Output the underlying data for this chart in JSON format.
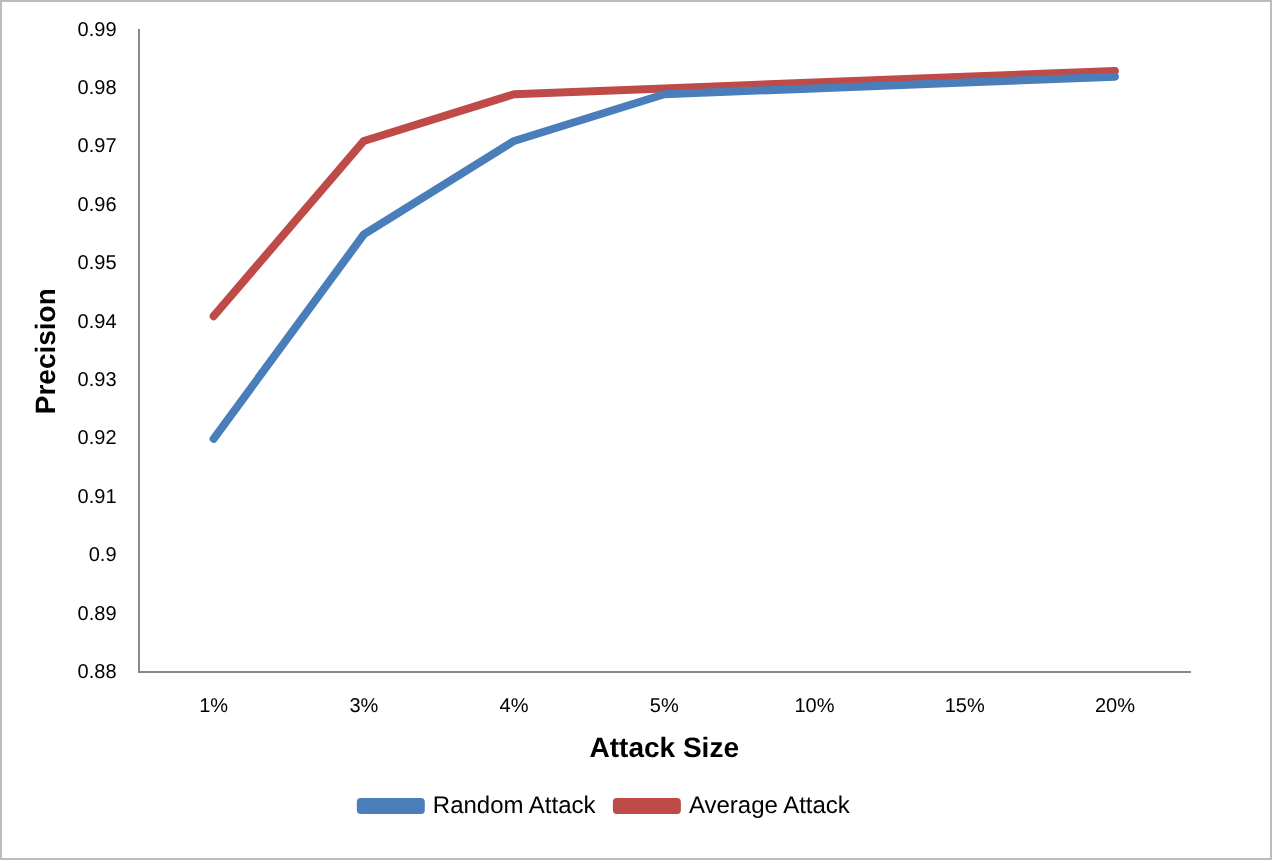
{
  "chart_data": {
    "type": "line",
    "xlabel": "Attack Size",
    "ylabel": "Precision",
    "categories": [
      "1%",
      "3%",
      "4%",
      "5%",
      "10%",
      "15%",
      "20%"
    ],
    "series": [
      {
        "name": "Random Attack",
        "color": "#4a7ebb",
        "values": [
          0.92,
          0.955,
          0.971,
          0.979,
          0.98,
          0.981,
          0.982
        ]
      },
      {
        "name": "Average Attack",
        "color": "#be4b48",
        "values": [
          0.941,
          0.971,
          0.979,
          0.98,
          0.981,
          0.982,
          0.983
        ]
      }
    ],
    "ylim": [
      0.88,
      0.99
    ],
    "yticks": [
      0.88,
      0.89,
      0.9,
      0.91,
      0.92,
      0.93,
      0.94,
      0.95,
      0.96,
      0.97,
      0.98,
      0.99
    ],
    "grid": false,
    "legend": "bottom",
    "marker": "none",
    "line_style": "solid"
  }
}
